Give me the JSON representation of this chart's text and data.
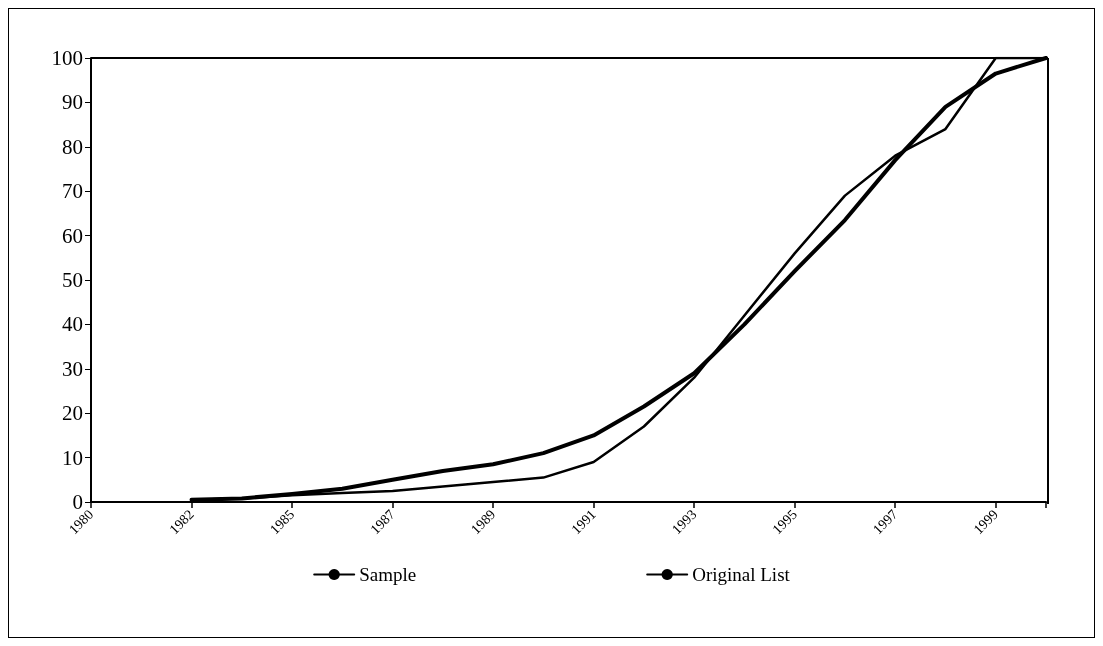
{
  "chart_data": {
    "type": "line",
    "categories": [
      "1980",
      null,
      "1982",
      null,
      "1985",
      null,
      "1987",
      null,
      "1989",
      null,
      "1991",
      null,
      "1993",
      null,
      "1995",
      null,
      "1997",
      null,
      "1999",
      null
    ],
    "series": [
      {
        "name": "Sample",
        "color": "#000000",
        "values": [
          null,
          null,
          0.5,
          0.8,
          1.8,
          3,
          5,
          7,
          8.5,
          11,
          15,
          21.5,
          29,
          40,
          52,
          63.5,
          77,
          89,
          96.5,
          100
        ]
      },
      {
        "name": "Original List",
        "color": "#000000",
        "values": [
          null,
          null,
          0.5,
          0.8,
          1.5,
          2,
          2.5,
          3.5,
          4.5,
          5.5,
          9,
          17,
          28,
          42,
          56,
          69,
          78,
          84,
          100,
          100
        ]
      }
    ],
    "ylim": [
      0,
      100
    ],
    "yticks": [
      0,
      10,
      20,
      30,
      40,
      50,
      60,
      70,
      80,
      90,
      100
    ],
    "grid": false,
    "legend": "bottom",
    "marker": "none",
    "line_style": "solid"
  }
}
